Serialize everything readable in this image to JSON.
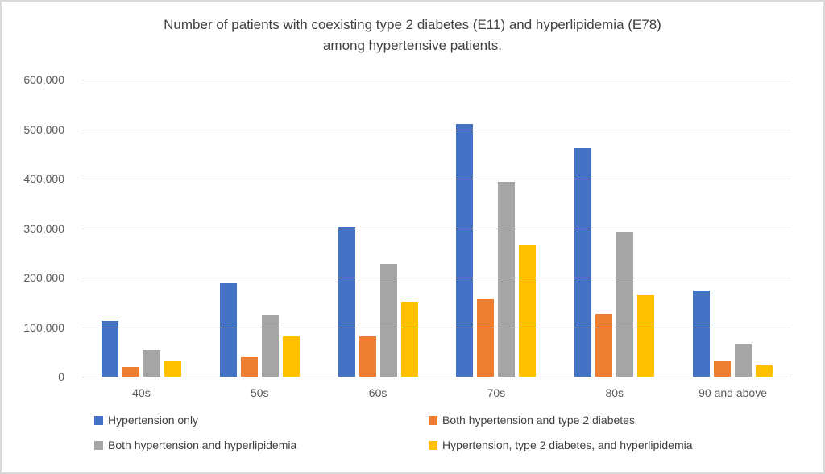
{
  "chart_data": {
    "type": "bar",
    "title": "Number of patients with coexisting type 2 diabetes (E11) and hyperlipidemia (E78) among hypertensive patients.",
    "title_lines": [
      "Number of patients with coexisting type 2 diabetes (E11) and hyperlipidemia (E78)",
      "among hypertensive patients."
    ],
    "categories": [
      "40s",
      "50s",
      "60s",
      "70s",
      "80s",
      "90 and above"
    ],
    "series": [
      {
        "name": "Hypertension only",
        "color": "#4472C4",
        "values": [
          112000,
          188000,
          303000,
          511000,
          462000,
          174000
        ]
      },
      {
        "name": "Both hypertension and type 2 diabetes",
        "color": "#ED7D31",
        "values": [
          19000,
          40000,
          82000,
          158000,
          127000,
          32000
        ]
      },
      {
        "name": "Both hypertension and hyperlipidemia",
        "color": "#A5A5A5",
        "values": [
          54000,
          123000,
          228000,
          394000,
          293000,
          66000
        ]
      },
      {
        "name": "Hypertension, type 2 diabetes, and hyperlipidemia",
        "color": "#FFC000",
        "values": [
          32000,
          81000,
          151000,
          266000,
          166000,
          25000
        ]
      }
    ],
    "ylim": [
      0,
      600000
    ],
    "ytick_step": 100000,
    "yticks": [
      "600,000",
      "500,000",
      "400,000",
      "300,000",
      "200,000",
      "100,000",
      "0"
    ],
    "xlabel": "",
    "ylabel": "",
    "grid": true,
    "legend_position": "bottom",
    "colors": {
      "gridline": "#D9D9D9",
      "axis_line": "#BFBFBF",
      "title_text": "#404040",
      "tick_text": "#595959",
      "frame_border": "#D9D9D9"
    }
  }
}
